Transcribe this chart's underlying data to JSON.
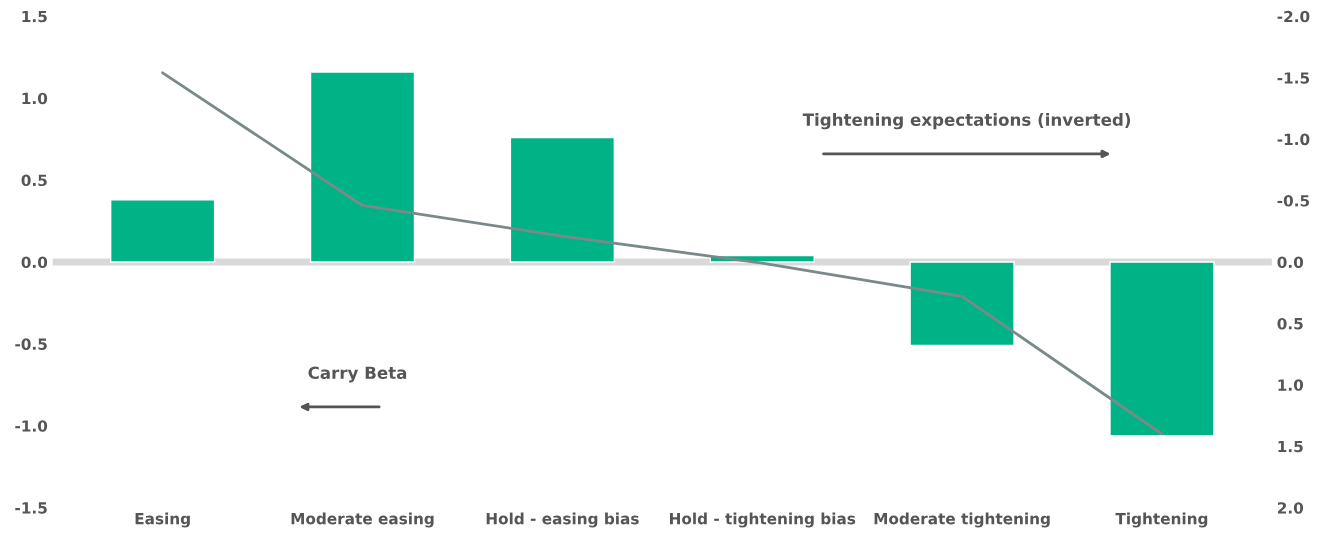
{
  "chart_data": {
    "type": "bar",
    "categories": [
      "Easing",
      "Moderate easing",
      "Hold - easing bias",
      "Hold - tightening bias",
      "Moderate tightening",
      "Tightening"
    ],
    "series": [
      {
        "color": "#00b386",
        "values": [
          0.38,
          1.16,
          0.76,
          0.04,
          -0.51,
          -1.06
        ]
      },
      {
        "type": "line",
        "axis": "y2",
        "color": "#7a8a8a",
        "values": [
          -1.54,
          -0.46,
          -0.21,
          0.01,
          0.28,
          1.4
        ]
      }
    ],
    "ylim": [
      -1.5,
      1.5
    ],
    "yticks": [
      -1.5,
      {
        "value": -1,
        "label": "-1.0"
      },
      -0.5,
      {
        "value": 0,
        "label": "0.0"
      },
      0.5,
      {
        "value": 1,
        "label": "1.0"
      },
      1.5
    ],
    "y2lim": [
      2.0,
      -2.0
    ],
    "y2ticks": [
      {
        "value": 2,
        "label": "2.0"
      },
      1.5,
      {
        "value": 1,
        "label": "1.0"
      },
      0.5,
      {
        "value": 0,
        "label": "0.0"
      },
      -0.5,
      {
        "value": -1,
        "label": "-1.0"
      },
      -1.5,
      {
        "value": -2,
        "label": "-2.0"
      }
    ],
    "ref_lines": [
      {
        "axis": "y",
        "value": 0,
        "color": "#d9d9d9"
      }
    ],
    "annotations": [
      "Carry Beta",
      "Tightening expectations (inverted)"
    ],
    "grid": false,
    "legend": false
  }
}
